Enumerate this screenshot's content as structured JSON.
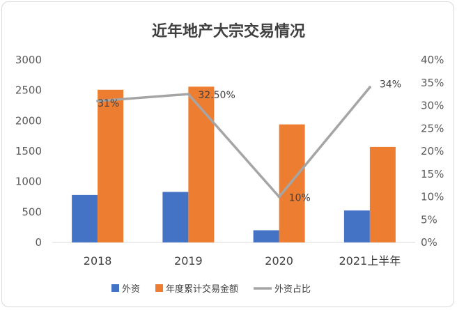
{
  "chart_data": {
    "type": "bar",
    "title": "近年地产大宗交易情况",
    "categories": [
      "2018",
      "2019",
      "2020",
      "2021上半年"
    ],
    "series": [
      {
        "name": "外资",
        "kind": "bar",
        "axis": "left",
        "color": "#4472C4",
        "values": [
          780,
          830,
          200,
          525
        ]
      },
      {
        "name": "年度累计交易金额",
        "kind": "bar",
        "axis": "left",
        "color": "#ED7D31",
        "values": [
          2510,
          2560,
          1940,
          1570
        ]
      },
      {
        "name": "外资占比",
        "kind": "line",
        "axis": "right",
        "color": "#A5A5A5",
        "values": [
          31,
          32.5,
          10,
          34
        ],
        "labels": [
          "31%",
          "32.50%",
          "10%",
          "34%"
        ]
      }
    ],
    "y_left": {
      "ylim": [
        0,
        3000
      ],
      "ticks": [
        "0",
        "500",
        "1000",
        "1500",
        "2000",
        "2500",
        "3000"
      ]
    },
    "y_right": {
      "ylim": [
        0,
        40
      ],
      "ticks": [
        "0%",
        "5%",
        "10%",
        "15%",
        "20%",
        "25%",
        "30%",
        "35%",
        "40%"
      ]
    },
    "grid": false,
    "legend_position": "bottom"
  }
}
